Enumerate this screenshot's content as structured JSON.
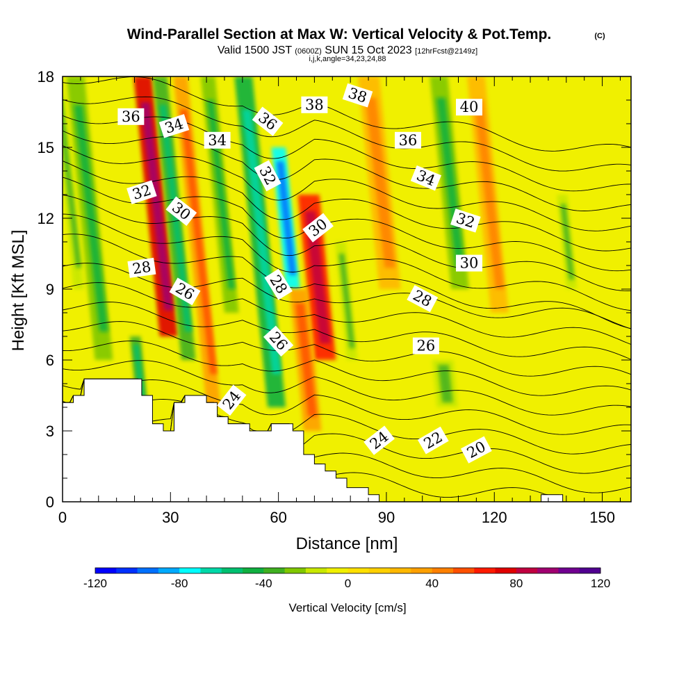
{
  "chart_data": {
    "type": "heatmap",
    "title": "Wind-Parallel Section at Max W: Vertical Velocity & Pot.Temp.",
    "copyright_mark": "(C)",
    "subtitle_valid": "Valid 1500 JST",
    "subtitle_utc": "(0600Z)",
    "subtitle_date": "SUN 15 Oct 2023",
    "subtitle_fcst": "[12hrFcst@2149z]",
    "subtitle_indices": "i,j,k,angle=34,23,24,88",
    "xlabel": "Distance [nm]",
    "ylabel": "Height [Kft MSL]",
    "xlim": [
      0,
      158
    ],
    "ylim": [
      0,
      18
    ],
    "x_ticks": [
      "0",
      "30",
      "60",
      "90",
      "120",
      "150"
    ],
    "x_tick_values": [
      0,
      30,
      60,
      90,
      120,
      150
    ],
    "y_ticks": [
      "0",
      "3",
      "6",
      "9",
      "12",
      "15",
      "18"
    ],
    "y_tick_values": [
      0,
      3,
      6,
      9,
      12,
      15,
      18
    ],
    "colorbar": {
      "label": "Vertical Velocity [cm/s]",
      "min": -120,
      "max": 120,
      "step": 10,
      "tick_labels": [
        "-120",
        "-80",
        "-40",
        "0",
        "40",
        "80",
        "120"
      ],
      "tick_values": [
        -120,
        -80,
        -40,
        0,
        40,
        80,
        120
      ],
      "colors": [
        "#0000ff",
        "#0030ff",
        "#0070ff",
        "#00aaff",
        "#00ffff",
        "#00d8a8",
        "#00c070",
        "#10b040",
        "#40b020",
        "#80c800",
        "#c8e800",
        "#f0f000",
        "#ffe000",
        "#ffd000",
        "#ffb800",
        "#ffa000",
        "#ff8000",
        "#ff5000",
        "#ff1a00",
        "#e00000",
        "#c00040",
        "#a00070",
        "#700090",
        "#500090"
      ]
    },
    "vertical_velocity_bands": [
      {
        "x": 3,
        "w": 3,
        "z0": 9,
        "z1": 18,
        "value": -20
      },
      {
        "x": 9,
        "w": 5,
        "z0": 6,
        "z1": 18,
        "value": -30
      },
      {
        "x": 21,
        "w": 3,
        "z0": 3.5,
        "z1": 7,
        "value": -40
      },
      {
        "x": 27,
        "w": 5,
        "z0": 7,
        "z1": 18,
        "value": 70
      },
      {
        "x": 33,
        "w": 4,
        "z0": 6,
        "z1": 18,
        "value": -40
      },
      {
        "x": 40,
        "w": 4,
        "z0": 4,
        "z1": 18,
        "value": 30
      },
      {
        "x": 45,
        "w": 4,
        "z0": 8,
        "z1": 18,
        "value": -30
      },
      {
        "x": 57,
        "w": 5,
        "z0": 4,
        "z1": 18,
        "value": -50
      },
      {
        "x": 62,
        "w": 4,
        "z0": 9,
        "z1": 15,
        "value": -80
      },
      {
        "x": 70,
        "w": 6,
        "z0": 6,
        "z1": 13,
        "value": 60
      },
      {
        "x": 67,
        "w": 5,
        "z0": 3,
        "z1": 9,
        "value": 30
      },
      {
        "x": 79,
        "w": 3,
        "z0": 6,
        "z1": 11,
        "value": -20
      },
      {
        "x": 88,
        "w": 6,
        "z0": 9,
        "z1": 18,
        "value": 20
      },
      {
        "x": 108,
        "w": 5,
        "z0": 9,
        "z1": 18,
        "value": -30
      },
      {
        "x": 104,
        "w": 6,
        "z0": 4,
        "z1": 6,
        "value": -20
      },
      {
        "x": 119,
        "w": 5,
        "z0": 8,
        "z1": 18,
        "value": 20
      },
      {
        "x": 140,
        "w": 3,
        "z0": 9,
        "z1": 13,
        "value": -20
      }
    ],
    "theta_contours": {
      "levels": [
        20,
        21,
        22,
        23,
        24,
        25,
        26,
        27,
        28,
        29,
        30,
        31,
        32,
        33,
        34,
        35,
        36,
        37,
        38,
        39,
        40
      ],
      "labels": [
        {
          "text": "36",
          "x": 19,
          "z": 16.3,
          "angle": 0
        },
        {
          "text": "34",
          "x": 31,
          "z": 15.9,
          "angle": -18
        },
        {
          "text": "34",
          "x": 43,
          "z": 15.3,
          "angle": 0
        },
        {
          "text": "36",
          "x": 57,
          "z": 16.1,
          "angle": 38
        },
        {
          "text": "38",
          "x": 70,
          "z": 16.8,
          "angle": 0
        },
        {
          "text": "38",
          "x": 82,
          "z": 17.2,
          "angle": 18
        },
        {
          "text": "40",
          "x": 113,
          "z": 16.7,
          "angle": 0
        },
        {
          "text": "36",
          "x": 96,
          "z": 15.3,
          "angle": 0
        },
        {
          "text": "34",
          "x": 101,
          "z": 13.7,
          "angle": 22
        },
        {
          "text": "32",
          "x": 22,
          "z": 13.1,
          "angle": -18
        },
        {
          "text": "30",
          "x": 33,
          "z": 12.3,
          "angle": 38
        },
        {
          "text": "32",
          "x": 57,
          "z": 13.8,
          "angle": 62
        },
        {
          "text": "30",
          "x": 71,
          "z": 11.6,
          "angle": -38
        },
        {
          "text": "32",
          "x": 112,
          "z": 11.9,
          "angle": 18
        },
        {
          "text": "30",
          "x": 113,
          "z": 10.1,
          "angle": 0
        },
        {
          "text": "28",
          "x": 22,
          "z": 9.9,
          "angle": -8
        },
        {
          "text": "26",
          "x": 34,
          "z": 8.9,
          "angle": 30
        },
        {
          "text": "28",
          "x": 60,
          "z": 9.2,
          "angle": 58
        },
        {
          "text": "28",
          "x": 100,
          "z": 8.6,
          "angle": 28
        },
        {
          "text": "26",
          "x": 60,
          "z": 6.8,
          "angle": 48
        },
        {
          "text": "26",
          "x": 101,
          "z": 6.6,
          "angle": 0
        },
        {
          "text": "24",
          "x": 47,
          "z": 4.3,
          "angle": -52
        },
        {
          "text": "24",
          "x": 88,
          "z": 2.6,
          "angle": -38
        },
        {
          "text": "22",
          "x": 103,
          "z": 2.6,
          "angle": -30
        },
        {
          "text": "20",
          "x": 115,
          "z": 2.2,
          "angle": -28
        }
      ]
    },
    "terrain_kft": [
      [
        0,
        4.2
      ],
      [
        3,
        4.2
      ],
      [
        3,
        4.5
      ],
      [
        6,
        4.5
      ],
      [
        6,
        5.2
      ],
      [
        22,
        5.2
      ],
      [
        22,
        4.5
      ],
      [
        25,
        4.5
      ],
      [
        25,
        3.3
      ],
      [
        28,
        3.3
      ],
      [
        28,
        3.0
      ],
      [
        31,
        3.0
      ],
      [
        31,
        4.2
      ],
      [
        34,
        4.2
      ],
      [
        34,
        4.5
      ],
      [
        40,
        4.5
      ],
      [
        40,
        4.2
      ],
      [
        43,
        4.2
      ],
      [
        43,
        3.6
      ],
      [
        46,
        3.6
      ],
      [
        46,
        3.3
      ],
      [
        52,
        3.3
      ],
      [
        52,
        3.0
      ],
      [
        58,
        3.0
      ],
      [
        58,
        3.3
      ],
      [
        64,
        3.3
      ],
      [
        64,
        3.0
      ],
      [
        67,
        3.0
      ],
      [
        67,
        2.0
      ],
      [
        70,
        2.0
      ],
      [
        70,
        1.6
      ],
      [
        73,
        1.6
      ],
      [
        73,
        1.3
      ],
      [
        76,
        1.3
      ],
      [
        76,
        1.0
      ],
      [
        79,
        1.0
      ],
      [
        79,
        0.6
      ],
      [
        85,
        0.6
      ],
      [
        85,
        0.3
      ],
      [
        88,
        0.3
      ],
      [
        88,
        0.0
      ],
      [
        133,
        0.0
      ],
      [
        133,
        0.3
      ],
      [
        139,
        0.3
      ],
      [
        139,
        0.0
      ],
      [
        158,
        0.0
      ]
    ]
  }
}
